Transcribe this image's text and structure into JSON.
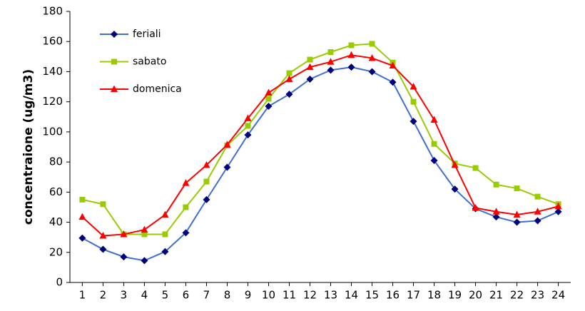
{
  "chart_data": {
    "type": "line",
    "y_label": "concentraione (ug/m3)",
    "x": [
      1,
      2,
      3,
      4,
      5,
      6,
      7,
      8,
      9,
      10,
      11,
      12,
      13,
      14,
      15,
      16,
      17,
      18,
      19,
      20,
      21,
      22,
      23,
      24
    ],
    "xlim": [
      0.4,
      24.6
    ],
    "xticks": [
      1,
      2,
      3,
      4,
      5,
      6,
      7,
      8,
      9,
      10,
      11,
      12,
      13,
      14,
      15,
      16,
      17,
      18,
      19,
      20,
      21,
      22,
      23,
      24
    ],
    "ylim": [
      0,
      180
    ],
    "yticks": [
      0,
      20,
      40,
      60,
      80,
      100,
      120,
      140,
      160,
      180
    ],
    "grid": false,
    "legend": "top-left",
    "series": [
      {
        "name": "feriali",
        "color": "#3f6fd0",
        "marker_color": "#00007a",
        "marker": "diamond",
        "values": [
          29.5,
          22,
          17,
          14.5,
          20.5,
          33,
          55,
          76.5,
          98,
          117,
          125,
          135,
          141,
          143,
          140,
          133,
          107,
          81,
          62,
          49,
          43.5,
          40,
          41,
          47
        ]
      },
      {
        "name": "sabato",
        "color": "#99cc00",
        "marker_color": "#99cc00",
        "marker": "square",
        "values": [
          55,
          52,
          32,
          32,
          32,
          50,
          67,
          91,
          104,
          122,
          139,
          148,
          153,
          157.5,
          158.5,
          146,
          120,
          92,
          79,
          76,
          65,
          62.5,
          57,
          52
        ]
      },
      {
        "name": "domenica",
        "color": "#ff0000",
        "marker_color": "#ff0000",
        "marker": "triangle",
        "values": [
          43.5,
          31,
          32,
          35,
          45,
          66,
          78,
          91.5,
          109,
          126,
          135,
          143,
          146.5,
          151,
          149,
          144,
          130,
          108,
          78,
          49.5,
          47,
          45,
          47,
          50.5
        ]
      }
    ]
  }
}
